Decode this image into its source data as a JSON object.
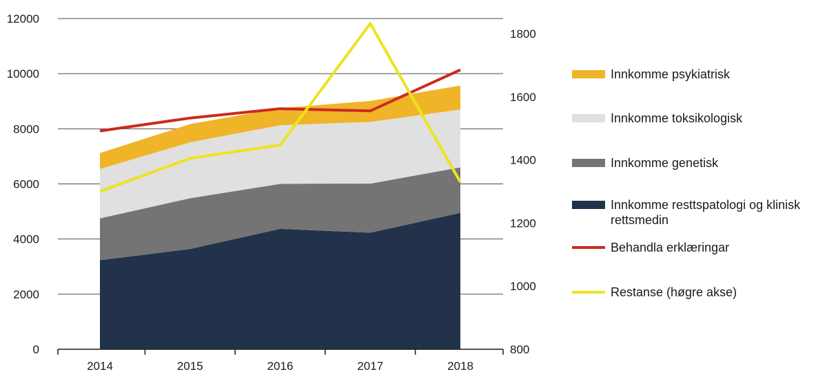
{
  "chart_data": {
    "type": "area",
    "x": [
      "2014",
      "2015",
      "2016",
      "2017",
      "2018"
    ],
    "stacked_areas": [
      {
        "name": "Innkomme resttspatologi og klinisk rettsmedin",
        "values": [
          3230,
          3640,
          4370,
          4230,
          4950
        ],
        "color": "#22324b"
      },
      {
        "name": "Innkomme genetisk",
        "values": [
          1520,
          1840,
          1630,
          1780,
          1650
        ],
        "color": "#747474"
      },
      {
        "name": "Innkomme toksikologisk",
        "values": [
          1790,
          2030,
          2130,
          2240,
          2100
        ],
        "color": "#e0e0e0"
      },
      {
        "name": "Innkomme psykiatrisk",
        "values": [
          580,
          660,
          620,
          760,
          870
        ],
        "color": "#f0b429"
      }
    ],
    "lines": [
      {
        "name": "Behandla erklæringar",
        "axis": "left",
        "values": [
          7920,
          8390,
          8730,
          8650,
          10140
        ],
        "color": "#cc2a1e"
      },
      {
        "name": "Restanse (høgre akse)",
        "axis": "right",
        "values": [
          1300,
          1405,
          1447,
          1832,
          1330
        ],
        "color": "#ede31e"
      }
    ],
    "y_left": {
      "min": 0,
      "max": 12000,
      "ticks": [
        "0",
        "2000",
        "4000",
        "6000",
        "8000",
        "10000",
        "12000"
      ]
    },
    "y_right": {
      "min": 800,
      "max": 1848,
      "ticks": [
        "800",
        "1000",
        "1200",
        "1400",
        "1600",
        "1800"
      ]
    },
    "grid": true,
    "legend_position": "right",
    "legend_order": [
      "Innkomme psykiatrisk",
      "Innkomme toksikologisk",
      "Innkomme genetisk",
      "Innkomme resttspatologi og klinisk rettsmedin",
      "Behandla erklæringar",
      "Restanse (høgre akse)"
    ]
  }
}
